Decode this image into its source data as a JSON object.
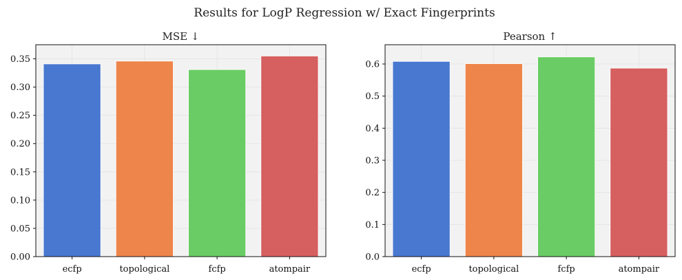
{
  "figure_title": "Results for LogP Regression w/ Exact Fingerprints",
  "chart_data": [
    {
      "type": "bar",
      "title": "MSE ↓",
      "xlabel": "",
      "ylabel": "",
      "categories": [
        "ecfp",
        "topological",
        "fcfp",
        "atompair"
      ],
      "values": [
        0.341,
        0.346,
        0.331,
        0.355
      ],
      "colors": [
        "#4878d0",
        "#ee854a",
        "#6acc64",
        "#d65f5f"
      ],
      "ylim": [
        0,
        0.375
      ],
      "yticks": [
        "0.00",
        "0.05",
        "0.10",
        "0.15",
        "0.20",
        "0.25",
        "0.30",
        "0.35"
      ],
      "grid": true
    },
    {
      "type": "bar",
      "title": "Pearson ↑",
      "xlabel": "",
      "ylabel": "",
      "categories": [
        "ecfp",
        "topological",
        "fcfp",
        "atompair"
      ],
      "values": [
        0.608,
        0.601,
        0.622,
        0.587
      ],
      "colors": [
        "#4878d0",
        "#ee854a",
        "#6acc64",
        "#d65f5f"
      ],
      "ylim": [
        0,
        0.66
      ],
      "yticks": [
        "0.0",
        "0.1",
        "0.2",
        "0.3",
        "0.4",
        "0.5",
        "0.6"
      ],
      "grid": true
    }
  ]
}
